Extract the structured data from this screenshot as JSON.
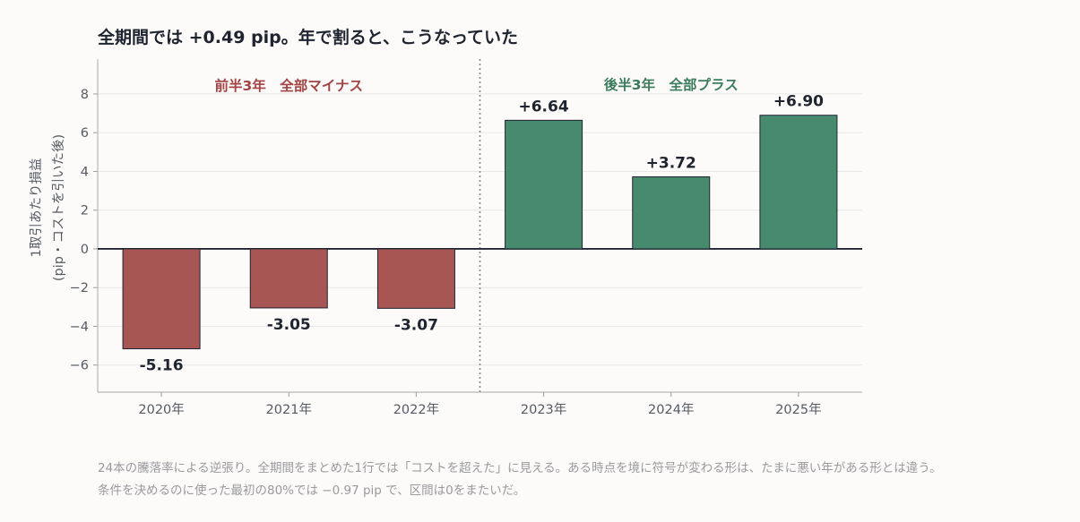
{
  "chart_data": {
    "type": "bar",
    "title": "全期間では +0.49 pip。年で割ると、こうなっていた",
    "categories": [
      "2020年",
      "2021年",
      "2022年",
      "2023年",
      "2024年",
      "2025年"
    ],
    "values": [
      -5.16,
      -3.05,
      -3.07,
      6.64,
      3.72,
      6.9
    ],
    "value_labels": [
      "-5.16",
      "-3.05",
      "-3.07",
      "+6.64",
      "+3.72",
      "+6.90"
    ],
    "ylabel_line1": "1取引あたり損益",
    "ylabel_line2": "(pip・コストを引いた後)",
    "ylim": [
      -7.4,
      9.8
    ],
    "yticks": [
      8,
      6,
      4,
      2,
      0,
      -2,
      -4,
      -6
    ],
    "ytick_labels": [
      "8",
      "6",
      "4",
      "2",
      "0",
      "−2",
      "−4",
      "−6"
    ],
    "grid": true,
    "divider_after_category": "2022年",
    "annotations": {
      "first_half": "前半3年　全部マイナス",
      "second_half": "後半3年　全部プラス"
    },
    "colors": {
      "negative": "#a85654",
      "positive": "#478a6e",
      "first_half_text": "#a34444",
      "second_half_text": "#3c7d5e",
      "bar_edge": "#1f2430",
      "zero_line": "#1f2430",
      "grid": "#e8e8e8",
      "divider": "#888888"
    }
  },
  "notes": {
    "line1": "24本の騰落率による逆張り。全期間をまとめた1行では「コストを超えた」に見える。ある時点を境に符号が変わる形は、たまに悪い年がある形とは違う。",
    "line2": "条件を決めるのに使った最初の80%では −0.97 pip で、区間は0をまたいだ。"
  }
}
